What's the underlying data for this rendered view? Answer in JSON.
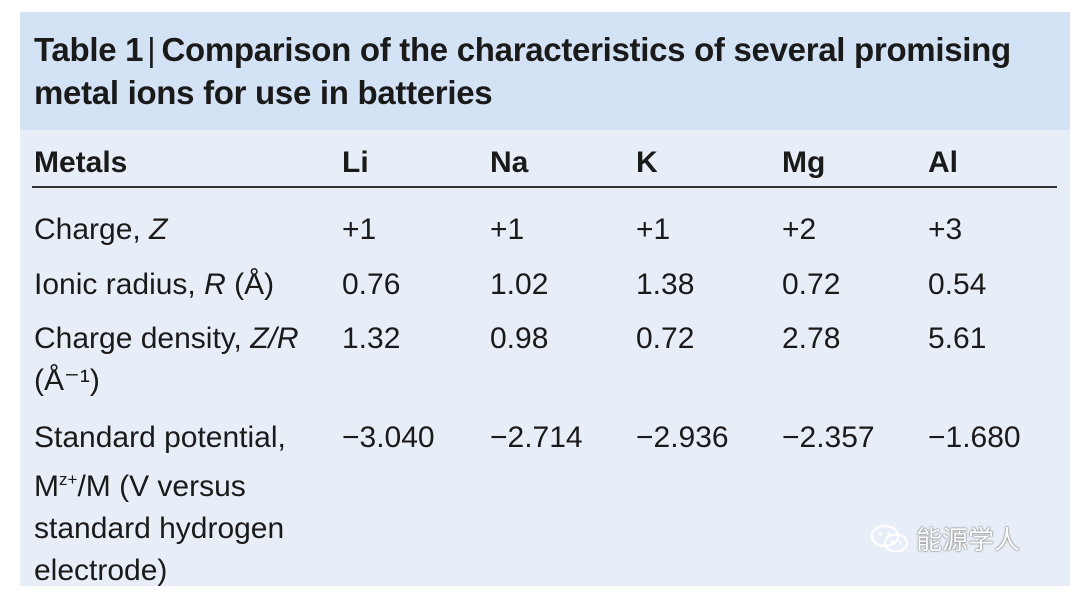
{
  "title": {
    "number": "Table 1",
    "separator": "|",
    "text": "Comparison of the characteristics of several promising metal ions for use in batteries"
  },
  "table": {
    "header_label": "Metals",
    "metals": [
      "Li",
      "Na",
      "K",
      "Mg",
      "Al"
    ],
    "rows": [
      {
        "label_main": "Charge, ",
        "label_var": "Z",
        "values": [
          "+1",
          "+1",
          "+1",
          "+2",
          "+3"
        ]
      },
      {
        "label_main": "Ionic radius, ",
        "label_var": "R",
        "label_unit": " (Å)",
        "values": [
          "0.76",
          "1.02",
          "1.38",
          "0.72",
          "0.54"
        ]
      },
      {
        "label_main": "Charge density, ",
        "label_var": "Z/R",
        "label_unit": "(Å⁻¹)",
        "values": [
          "1.32",
          "0.98",
          "0.72",
          "2.78",
          "5.61"
        ]
      },
      {
        "label_main": "Standard potential, M",
        "label_sup": "z+",
        "label_rest": "/M (V versus standard hydrogen electrode)",
        "values": [
          "−3.040",
          "−2.714",
          "−2.936",
          "−2.357",
          "−1.680"
        ]
      }
    ]
  },
  "watermark": {
    "text": "能源学人",
    "icon": "wechat-icon"
  }
}
